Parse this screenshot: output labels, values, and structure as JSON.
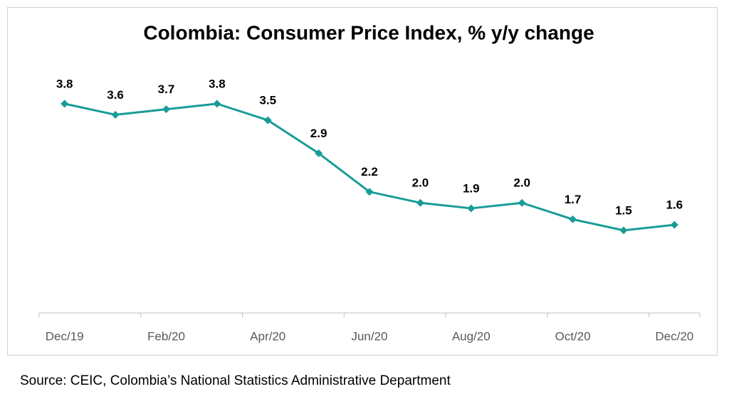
{
  "chart_data": {
    "type": "line",
    "title": "Colombia: Consumer Price Index, % y/y change",
    "categories": [
      "Dec/19",
      null,
      "Feb/20",
      null,
      "Apr/20",
      null,
      "Jun/20",
      null,
      "Aug/20",
      null,
      "Oct/20",
      null,
      "Dec/20"
    ],
    "values": [
      3.8,
      3.6,
      3.7,
      3.8,
      3.5,
      2.9,
      2.2,
      2.0,
      1.9,
      2.0,
      1.7,
      1.5,
      1.6
    ],
    "value_labels": [
      "3.8",
      "3.6",
      "3.7",
      "3.8",
      "3.5",
      "2.9",
      "2.2",
      "2.0",
      "1.9",
      "2.0",
      "1.7",
      "1.5",
      "1.6"
    ],
    "color": "#199c97",
    "ylim": [
      0,
      5
    ],
    "source": "Source: CEIC, Colombia’s National Statistics Administrative Department"
  }
}
